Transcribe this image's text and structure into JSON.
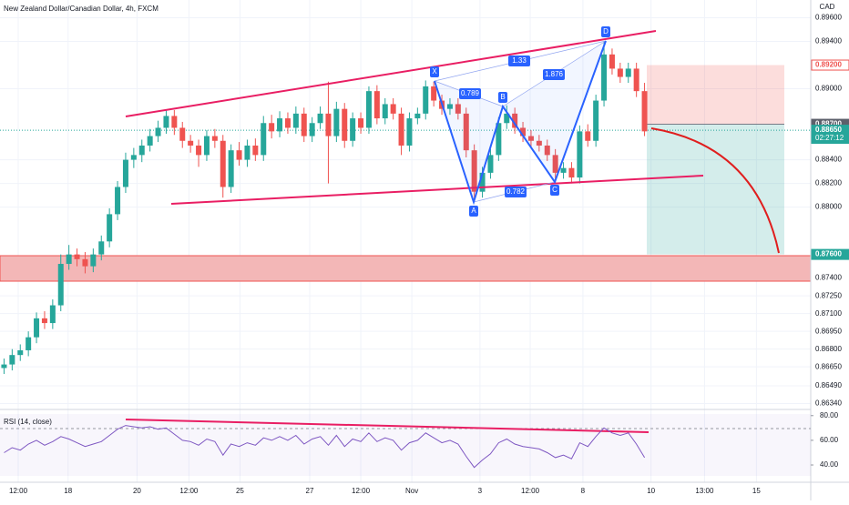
{
  "chart_data": {
    "type": "candlestick",
    "title": "New Zealand Dollar/Canadian Dollar, 4h, FXCM",
    "currency_label": "CAD",
    "colors": {
      "up": "#26a69a",
      "down": "#ef5350"
    },
    "grid": true,
    "xlim": [
      -0.5,
      99.5
    ],
    "ylim": [
      0.8629,
      0.8975
    ],
    "xticks": [
      {
        "value": 1.75,
        "label": "12:00"
      },
      {
        "value": 7.9,
        "label": "18"
      },
      {
        "value": 16.4,
        "label": "20"
      },
      {
        "value": 22.8,
        "label": "12:00"
      },
      {
        "value": 29.1,
        "label": "25"
      },
      {
        "value": 37.7,
        "label": "27"
      },
      {
        "value": 44,
        "label": "12:00"
      },
      {
        "value": 50.3,
        "label": "Nov"
      },
      {
        "value": 58.7,
        "label": "3"
      },
      {
        "value": 64.9,
        "label": "12:00"
      },
      {
        "value": 71.4,
        "label": "8"
      },
      {
        "value": 79.8,
        "label": "10"
      },
      {
        "value": 86.4,
        "label": "13:00"
      },
      {
        "value": 92.8,
        "label": "15"
      }
    ],
    "yticks": [
      {
        "value": 0.896,
        "label": "0.89600"
      },
      {
        "value": 0.894,
        "label": "0.89400"
      },
      {
        "value": 0.89,
        "label": "0.89000"
      },
      {
        "value": 0.884,
        "label": "0.88400"
      },
      {
        "value": 0.882,
        "label": "0.88200"
      },
      {
        "value": 0.88,
        "label": "0.88000"
      },
      {
        "value": 0.874,
        "label": "0.87400"
      },
      {
        "value": 0.8725,
        "label": "0.87250"
      },
      {
        "value": 0.871,
        "label": "0.87100"
      },
      {
        "value": 0.8695,
        "label": "0.86950"
      },
      {
        "value": 0.868,
        "label": "0.86800"
      },
      {
        "value": 0.8665,
        "label": "0.86650"
      },
      {
        "value": 0.8649,
        "label": "0.86490"
      },
      {
        "value": 0.8634,
        "label": "0.86340"
      }
    ],
    "price_labels": [
      {
        "value": 0.892,
        "label": "0.89200",
        "color": "#ef5350"
      },
      {
        "value": 0.887,
        "label": "0.88700",
        "color": "#5d606b"
      },
      {
        "value": 0.8865,
        "label": "0.88650",
        "color": "#26a69a"
      },
      {
        "value": 0.876,
        "label": "0.87600",
        "color": "#26a69a"
      }
    ],
    "countdown": "02:27:12",
    "ohlc": [
      [
        0.8664,
        0.8672,
        0.8659,
        0.8667
      ],
      [
        0.8667,
        0.868,
        0.8662,
        0.8675
      ],
      [
        0.8675,
        0.8684,
        0.867,
        0.8679
      ],
      [
        0.8679,
        0.8695,
        0.8674,
        0.869
      ],
      [
        0.869,
        0.8711,
        0.8685,
        0.8706
      ],
      [
        0.8706,
        0.8712,
        0.8697,
        0.8702
      ],
      [
        0.8702,
        0.8722,
        0.8697,
        0.8717
      ],
      [
        0.8717,
        0.876,
        0.8712,
        0.8752
      ],
      [
        0.8752,
        0.8768,
        0.8747,
        0.876
      ],
      [
        0.876,
        0.8765,
        0.875,
        0.8756
      ],
      [
        0.8756,
        0.8762,
        0.8744,
        0.875
      ],
      [
        0.875,
        0.8765,
        0.8745,
        0.876
      ],
      [
        0.876,
        0.8776,
        0.8755,
        0.8771
      ],
      [
        0.8771,
        0.8799,
        0.8766,
        0.8794
      ],
      [
        0.8794,
        0.8822,
        0.8789,
        0.8817
      ],
      [
        0.8817,
        0.8846,
        0.8812,
        0.884
      ],
      [
        0.884,
        0.885,
        0.8833,
        0.8844
      ],
      [
        0.8844,
        0.8857,
        0.8838,
        0.8852
      ],
      [
        0.8852,
        0.8866,
        0.8847,
        0.886
      ],
      [
        0.886,
        0.8873,
        0.8855,
        0.8867
      ],
      [
        0.8867,
        0.8882,
        0.8862,
        0.8877
      ],
      [
        0.8877,
        0.8882,
        0.8861,
        0.8867
      ],
      [
        0.8867,
        0.8872,
        0.885,
        0.8856
      ],
      [
        0.8856,
        0.8861,
        0.8846,
        0.8852
      ],
      [
        0.8852,
        0.8857,
        0.8834,
        0.8844
      ],
      [
        0.8844,
        0.8865,
        0.8839,
        0.886
      ],
      [
        0.886,
        0.8866,
        0.885,
        0.8856
      ],
      [
        0.8856,
        0.8861,
        0.8808,
        0.8817
      ],
      [
        0.8817,
        0.8853,
        0.8812,
        0.8848
      ],
      [
        0.8848,
        0.8855,
        0.8835,
        0.884
      ],
      [
        0.884,
        0.8857,
        0.8834,
        0.8852
      ],
      [
        0.8852,
        0.8858,
        0.8839,
        0.8844
      ],
      [
        0.8844,
        0.8877,
        0.8839,
        0.8871
      ],
      [
        0.8871,
        0.8878,
        0.8858,
        0.8864
      ],
      [
        0.8864,
        0.8881,
        0.8859,
        0.8875
      ],
      [
        0.8875,
        0.888,
        0.8862,
        0.8867
      ],
      [
        0.8867,
        0.8885,
        0.8862,
        0.8879
      ],
      [
        0.8879,
        0.8884,
        0.8855,
        0.886
      ],
      [
        0.886,
        0.8876,
        0.8855,
        0.8871
      ],
      [
        0.8871,
        0.8885,
        0.8866,
        0.8879
      ],
      [
        0.8879,
        0.8906,
        0.882,
        0.886
      ],
      [
        0.886,
        0.8889,
        0.8855,
        0.8883
      ],
      [
        0.8883,
        0.8888,
        0.885,
        0.8856
      ],
      [
        0.8856,
        0.888,
        0.8851,
        0.8875
      ],
      [
        0.8875,
        0.888,
        0.8862,
        0.8867
      ],
      [
        0.8867,
        0.8902,
        0.8862,
        0.8898
      ],
      [
        0.8898,
        0.8903,
        0.887,
        0.8875
      ],
      [
        0.8875,
        0.8892,
        0.887,
        0.8887
      ],
      [
        0.8887,
        0.8892,
        0.8874,
        0.8879
      ],
      [
        0.8879,
        0.8884,
        0.8844,
        0.8852
      ],
      [
        0.8852,
        0.888,
        0.8847,
        0.8875
      ],
      [
        0.8875,
        0.8884,
        0.887,
        0.8879
      ],
      [
        0.8879,
        0.8907,
        0.8874,
        0.8902
      ],
      [
        0.8902,
        0.8906,
        0.8885,
        0.889
      ],
      [
        0.889,
        0.8895,
        0.8878,
        0.8883
      ],
      [
        0.8883,
        0.8892,
        0.8878,
        0.8887
      ],
      [
        0.8887,
        0.8892,
        0.8874,
        0.8879
      ],
      [
        0.8879,
        0.8884,
        0.8842,
        0.8848
      ],
      [
        0.8848,
        0.8853,
        0.8806,
        0.8813
      ],
      [
        0.8813,
        0.8834,
        0.8808,
        0.8829
      ],
      [
        0.8829,
        0.8849,
        0.8824,
        0.8844
      ],
      [
        0.8844,
        0.8876,
        0.8839,
        0.8871
      ],
      [
        0.8871,
        0.8886,
        0.8866,
        0.8879
      ],
      [
        0.8879,
        0.8884,
        0.8862,
        0.8867
      ],
      [
        0.8867,
        0.8872,
        0.8855,
        0.886
      ],
      [
        0.886,
        0.8865,
        0.8851,
        0.8856
      ],
      [
        0.8856,
        0.8861,
        0.8847,
        0.8852
      ],
      [
        0.8852,
        0.8857,
        0.8839,
        0.8844
      ],
      [
        0.8844,
        0.8849,
        0.882,
        0.8829
      ],
      [
        0.8829,
        0.8838,
        0.8824,
        0.8833
      ],
      [
        0.8833,
        0.8838,
        0.882,
        0.8825
      ],
      [
        0.8825,
        0.8869,
        0.882,
        0.8864
      ],
      [
        0.8864,
        0.887,
        0.8851,
        0.8856
      ],
      [
        0.8856,
        0.8895,
        0.8851,
        0.889
      ],
      [
        0.889,
        0.894,
        0.8885,
        0.8929
      ],
      [
        0.8929,
        0.8934,
        0.8912,
        0.8917
      ],
      [
        0.8917,
        0.8922,
        0.8905,
        0.891
      ],
      [
        0.891,
        0.8922,
        0.8905,
        0.8917
      ],
      [
        0.8917,
        0.8922,
        0.8893,
        0.8898
      ],
      [
        0.8898,
        0.8905,
        0.886,
        0.8864
      ]
    ],
    "pattern": {
      "labels": [
        "X",
        "A",
        "B",
        "C",
        "D"
      ],
      "ratios": [
        0.789,
        1.33,
        1.876,
        0.782
      ]
    },
    "rsi": {
      "label": "RSI (14, close)",
      "color": "#7e57c2",
      "ylim": [
        26,
        85
      ],
      "yticks": [
        {
          "value": 80,
          "label": "80.00"
        },
        {
          "value": 60,
          "label": "60.00"
        },
        {
          "value": 40,
          "label": "40.00"
        }
      ],
      "values": [
        50,
        54,
        52,
        57,
        60,
        56,
        59,
        63,
        61,
        58,
        55,
        57,
        59,
        64,
        69,
        72,
        71,
        70,
        71,
        69,
        70,
        65,
        60,
        59,
        56,
        61,
        59,
        48,
        57,
        55,
        58,
        56,
        62,
        60,
        63,
        60,
        64,
        57,
        61,
        63,
        56,
        64,
        55,
        61,
        59,
        66,
        59,
        62,
        60,
        52,
        58,
        60,
        66,
        62,
        58,
        60,
        57,
        47,
        38,
        44,
        49,
        58,
        61,
        57,
        55,
        54,
        53,
        50,
        46,
        48,
        45,
        58,
        55,
        63,
        70,
        66,
        64,
        66,
        57,
        46
      ]
    }
  }
}
